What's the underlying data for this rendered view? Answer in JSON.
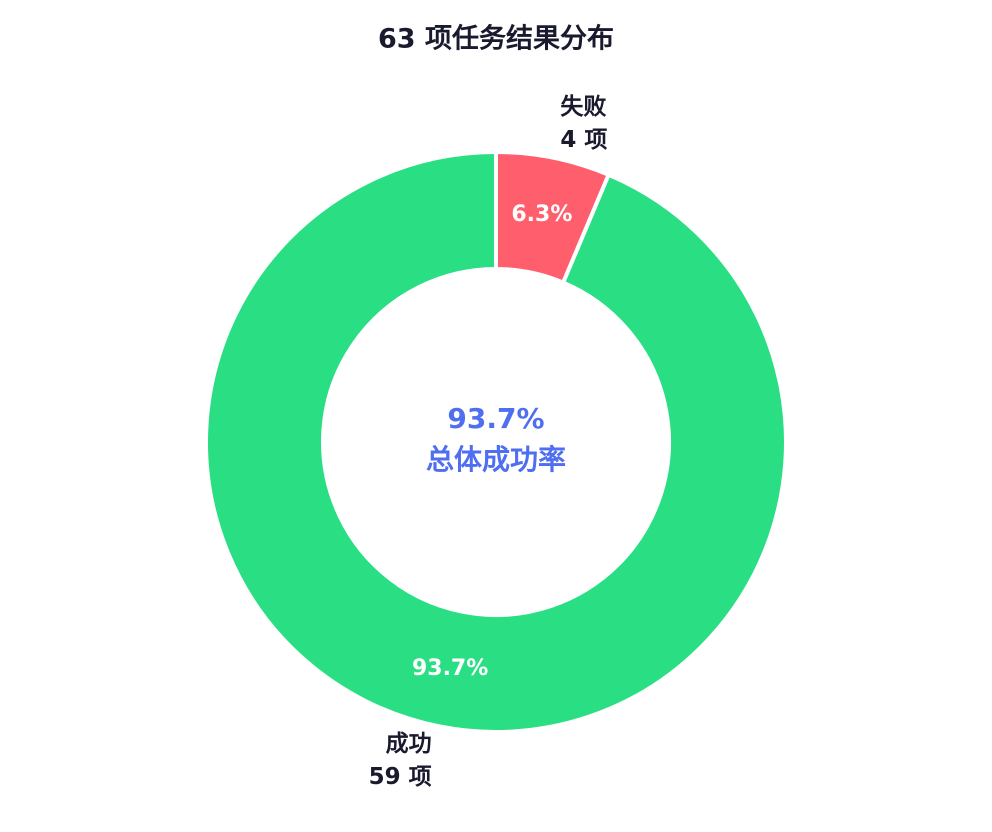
{
  "chart_data": {
    "type": "donut",
    "title": "63 项任务结果分布",
    "categories": [
      "失败",
      "成功"
    ],
    "values": [
      4,
      59
    ],
    "value_labels": [
      "4 项",
      "59 项"
    ],
    "percent_labels": [
      "6.3%",
      "93.7%"
    ],
    "colors": [
      "#ff5f6d",
      "#2ade84"
    ],
    "center_label": "93.7%",
    "center_subtitle": "总体成功率"
  }
}
